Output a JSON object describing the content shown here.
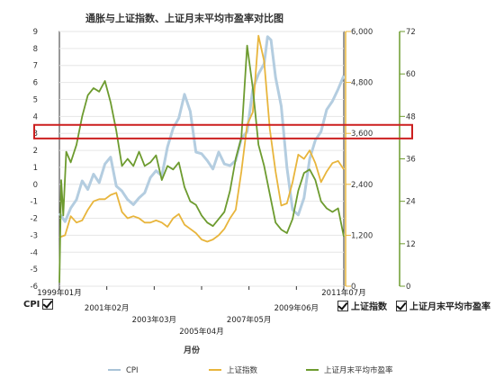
{
  "chart_data": {
    "type": "line",
    "title": "通胀与上证指数、上证月末平均市盈率对比图",
    "xlabel": "月份",
    "x_tick_labels": [
      "1999年01月",
      "2001年02月",
      "2003年03月",
      "2005年04月",
      "2007年05月",
      "2009年06月",
      "2011年07月"
    ],
    "x_tick_values": [
      1999.0,
      2001.083,
      2003.167,
      2005.25,
      2007.333,
      2009.417,
      2011.5
    ],
    "xlim": [
      1999.0,
      2011.5
    ],
    "y_axes": [
      {
        "id": "cpi",
        "side": "left",
        "range": [
          -6,
          9
        ],
        "ticks": [
          -6,
          -5,
          -4,
          -3,
          -2,
          -1,
          0,
          1,
          2,
          3,
          4,
          5,
          6,
          7,
          8,
          9
        ],
        "color": "#9ab3c8"
      },
      {
        "id": "index",
        "side": "right",
        "range": [
          0,
          6000
        ],
        "ticks": [
          0,
          1200,
          2400,
          3600,
          4800,
          6000
        ],
        "color": "#e8b53c"
      },
      {
        "id": "pe",
        "side": "right-outer",
        "range": [
          0,
          72
        ],
        "ticks": [
          0,
          12,
          24,
          36,
          48,
          60,
          72
        ],
        "color": "#6d9b2f"
      }
    ],
    "highlight": {
      "axis": "cpi",
      "y_range": [
        2.7,
        3.5
      ],
      "color": "#cc1f1f"
    },
    "series": [
      {
        "name": "CPI",
        "axis": "cpi",
        "color": "#b4cde0",
        "legend_color": "#a9c3d7",
        "x": [
          1999.0,
          1999.25,
          1999.5,
          1999.75,
          2000.0,
          2000.25,
          2000.5,
          2000.75,
          2001.0,
          2001.25,
          2001.5,
          2001.75,
          2002.0,
          2002.25,
          2002.5,
          2002.75,
          2003.0,
          2003.25,
          2003.5,
          2003.75,
          2004.0,
          2004.25,
          2004.5,
          2004.75,
          2005.0,
          2005.25,
          2005.5,
          2005.75,
          2006.0,
          2006.25,
          2006.5,
          2006.75,
          2007.0,
          2007.25,
          2007.5,
          2007.75,
          2008.0,
          2008.15,
          2008.3,
          2008.5,
          2008.75,
          2009.0,
          2009.25,
          2009.5,
          2009.75,
          2010.0,
          2010.25,
          2010.5,
          2010.75,
          2011.0,
          2011.25,
          2011.5
        ],
        "values": [
          -1.7,
          -2.2,
          -1.4,
          -0.9,
          0.2,
          -0.3,
          0.6,
          0.1,
          1.2,
          1.6,
          -0.1,
          -0.4,
          -0.9,
          -1.2,
          -0.8,
          -0.5,
          0.4,
          0.8,
          0.5,
          2.2,
          3.3,
          3.9,
          5.3,
          4.3,
          1.9,
          1.8,
          1.4,
          0.9,
          1.9,
          1.2,
          1.1,
          1.4,
          2.7,
          3.1,
          5.6,
          6.5,
          7.1,
          8.7,
          8.5,
          6.3,
          4.6,
          1.0,
          -1.5,
          -1.8,
          -0.8,
          1.5,
          2.6,
          3.1,
          4.4,
          4.9,
          5.6,
          6.4
        ]
      },
      {
        "name": "上证指数",
        "axis": "index",
        "color": "#e8b53c",
        "legend_color": "#e8b53c",
        "x": [
          1999.0,
          1999.25,
          1999.5,
          1999.75,
          2000.0,
          2000.25,
          2000.5,
          2000.75,
          2001.0,
          2001.25,
          2001.5,
          2001.75,
          2002.0,
          2002.25,
          2002.5,
          2002.75,
          2003.0,
          2003.25,
          2003.5,
          2003.75,
          2004.0,
          2004.25,
          2004.5,
          2004.75,
          2005.0,
          2005.25,
          2005.5,
          2005.75,
          2006.0,
          2006.25,
          2006.5,
          2006.75,
          2007.0,
          2007.25,
          2007.5,
          2007.75,
          2008.0,
          2008.25,
          2008.5,
          2008.75,
          2009.0,
          2009.25,
          2009.5,
          2009.75,
          2010.0,
          2010.25,
          2010.5,
          2010.75,
          2011.0,
          2011.25,
          2011.5
        ],
        "values": [
          1150,
          1200,
          1650,
          1500,
          1550,
          1800,
          2000,
          2050,
          2050,
          2150,
          2200,
          1750,
          1600,
          1650,
          1600,
          1500,
          1500,
          1550,
          1500,
          1400,
          1600,
          1700,
          1450,
          1350,
          1250,
          1100,
          1050,
          1100,
          1200,
          1350,
          1600,
          1800,
          2700,
          3800,
          4100,
          5900,
          5300,
          3700,
          2700,
          1900,
          1950,
          2450,
          3100,
          3000,
          3200,
          2900,
          2450,
          2700,
          2900,
          2950,
          2750
        ]
      },
      {
        "name": "上证月末平均市盈率",
        "axis": "pe",
        "color": "#6d9b2f",
        "legend_color": "#6d9b2f",
        "x": [
          1999.0,
          1999.08,
          1999.17,
          1999.3,
          1999.5,
          1999.75,
          2000.0,
          2000.25,
          2000.5,
          2000.75,
          2001.0,
          2001.25,
          2001.5,
          2001.75,
          2002.0,
          2002.25,
          2002.5,
          2002.75,
          2003.0,
          2003.25,
          2003.5,
          2003.75,
          2004.0,
          2004.25,
          2004.5,
          2004.75,
          2005.0,
          2005.25,
          2005.5,
          2005.75,
          2006.0,
          2006.25,
          2006.5,
          2006.75,
          2007.0,
          2007.25,
          2007.5,
          2007.75,
          2008.0,
          2008.25,
          2008.5,
          2008.75,
          2009.0,
          2009.25,
          2009.5,
          2009.75,
          2010.0,
          2010.25,
          2010.5,
          2010.75,
          2011.0,
          2011.25,
          2011.5
        ],
        "values": [
          1,
          30,
          20,
          38,
          35,
          40,
          48,
          54,
          56,
          55,
          58,
          52,
          44,
          34,
          36,
          34,
          38,
          34,
          35,
          37,
          30,
          34,
          33,
          35,
          28,
          24,
          23,
          20,
          18,
          17,
          19,
          21,
          27,
          36,
          42,
          68,
          56,
          40,
          34,
          26,
          18,
          16,
          15,
          19,
          27,
          32,
          33,
          30,
          24,
          22,
          21,
          22,
          14
        ]
      }
    ],
    "legend": {
      "placement": "bottom"
    },
    "checkbox_labels": [
      "CPI",
      "上证指数",
      "上证月末平均市盈率"
    ]
  }
}
